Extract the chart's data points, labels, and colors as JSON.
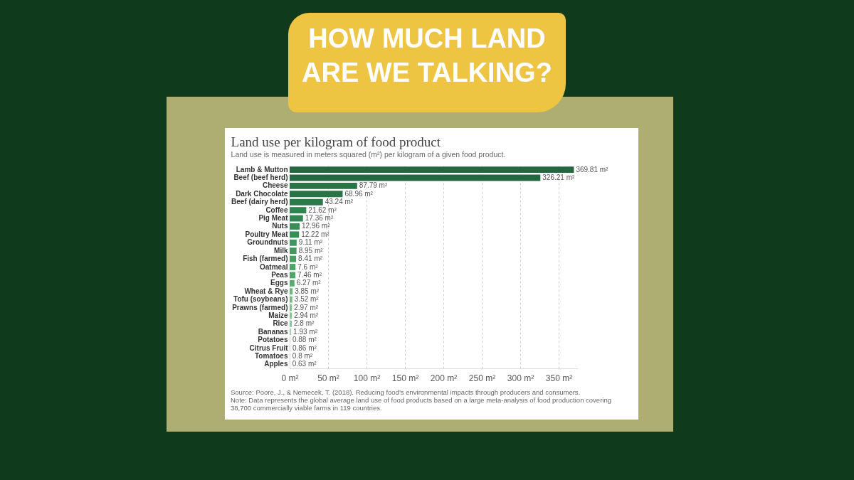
{
  "chart_data": {
    "type": "bar",
    "orientation": "horizontal",
    "title": "Land use per kilogram of food product",
    "subtitle": "Land use is measured in meters squared (m²) per kilogram of a given food product.",
    "annotations": [
      "HOW MUCH LAND ARE WE TALKING?",
      "Source: Poore, J., & Nemecek, T. (2018). Reducing food’s environmental impacts through producers and consumers.",
      "Note: Data represents the global average land use of food products based on a large meta-analysis of food production covering 38,700 commercially viable farms in 119 countries."
    ],
    "categories": [
      "Lamb & Mutton",
      "Beef (beef herd)",
      "Cheese",
      "Dark Chocolate",
      "Beef (dairy herd)",
      "Coffee",
      "Pig Meat",
      "Nuts",
      "Poultry Meat",
      "Groundnuts",
      "Milk",
      "Fish (farmed)",
      "Oatmeal",
      "Peas",
      "Eggs",
      "Wheat & Rye",
      "Tofu (soybeans)",
      "Prawns (farmed)",
      "Maize",
      "Rice",
      "Bananas",
      "Potatoes",
      "Citrus Fruit",
      "Tomatoes",
      "Apples"
    ],
    "values": [
      369.81,
      326.21,
      87.79,
      68.96,
      43.24,
      21.62,
      17.36,
      12.96,
      12.22,
      9.11,
      8.95,
      8.41,
      7.6,
      7.46,
      6.27,
      3.85,
      3.52,
      2.97,
      2.94,
      2.8,
      1.93,
      0.88,
      0.86,
      0.8,
      0.63
    ],
    "value_labels": [
      "369.81 m²",
      "326.21 m²",
      "87.79 m²",
      "68.96 m²",
      "43.24 m²",
      "21.62 m²",
      "17.36 m²",
      "12.96 m²",
      "12.22 m²",
      "9.11 m²",
      "8.95 m²",
      "8.41 m²",
      "7.6 m²",
      "7.46 m²",
      "6.27 m²",
      "3.85 m²",
      "3.52 m²",
      "2.97 m²",
      "2.94 m²",
      "2.8 m²",
      "1.93 m²",
      "0.88 m²",
      "0.86 m²",
      "0.8 m²",
      "0.63 m²"
    ],
    "colors": [
      "#236640",
      "#236640",
      "#2a7346",
      "#2a7346",
      "#2c7a4a",
      "#2f8450",
      "#318852",
      "#368e57",
      "#368e57",
      "#3d975e",
      "#41995f",
      "#44a063",
      "#4aa568",
      "#4ca769",
      "#55ad6f",
      "#6db87f",
      "#74bc84",
      "#80c28d",
      "#85c591",
      "#8dc998",
      "#a2d4aa",
      "#b9dfbd",
      "#bde1c0",
      "#c2e3c5",
      "#cde9cf"
    ],
    "xlim": [
      0,
      375
    ],
    "xticks": [
      {
        "value": 0,
        "label": "0 m²"
      },
      {
        "value": 50,
        "label": "50 m²"
      },
      {
        "value": 100,
        "label": "100 m²"
      },
      {
        "value": 150,
        "label": "150 m²"
      },
      {
        "value": 200,
        "label": "200 m²"
      },
      {
        "value": 250,
        "label": "250 m²"
      },
      {
        "value": 300,
        "label": "300 m²"
      },
      {
        "value": 350,
        "label": "350 m²"
      }
    ],
    "grid": "x"
  }
}
